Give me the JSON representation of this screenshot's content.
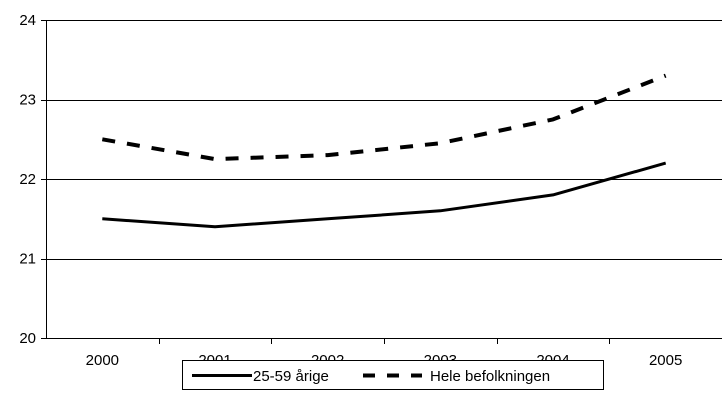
{
  "chart_data": {
    "type": "line",
    "categories": [
      "2000",
      "2001",
      "2002",
      "2003",
      "2004",
      "2005"
    ],
    "series": [
      {
        "name": "25-59 årige",
        "values": [
          21.5,
          21.4,
          21.5,
          21.6,
          21.8,
          22.2
        ],
        "style": "solid",
        "color": "#000000"
      },
      {
        "name": "Hele befolkningen",
        "values": [
          22.5,
          22.25,
          22.3,
          22.45,
          22.75,
          23.3
        ],
        "style": "dashed",
        "color": "#000000"
      }
    ],
    "y_ticks": [
      "20",
      "21",
      "22",
      "23",
      "24"
    ],
    "ylim": [
      20,
      24
    ],
    "grid": true,
    "legend": "bottom"
  }
}
